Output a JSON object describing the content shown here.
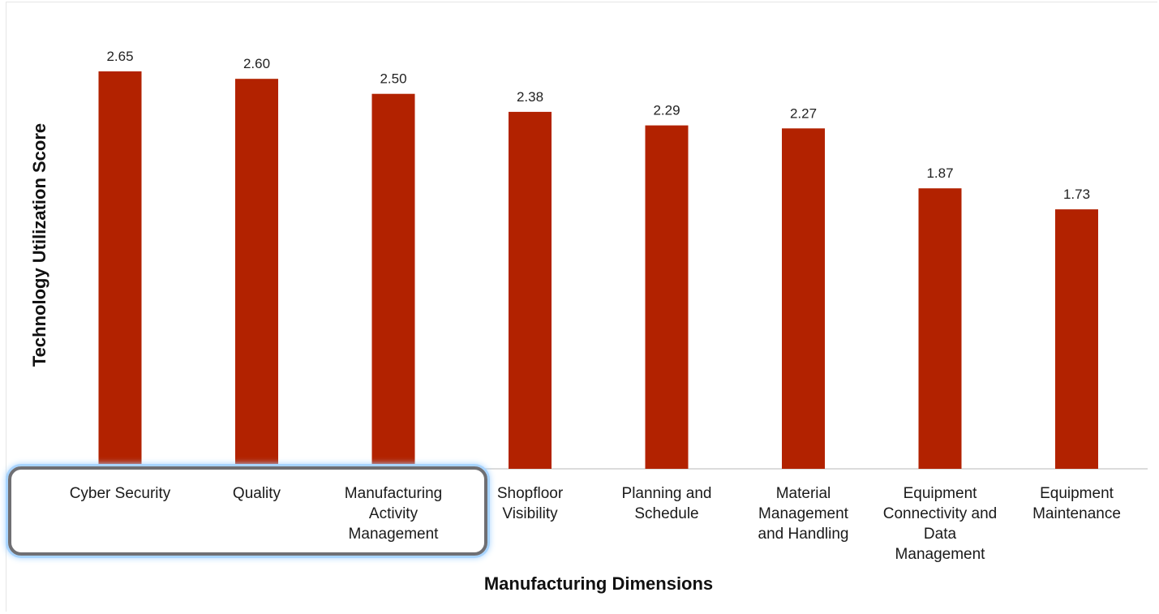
{
  "chart_data": {
    "type": "bar",
    "categories": [
      "Cyber Security",
      "Quality",
      "Manufacturing Activity Management",
      "Shopfloor Visibility",
      "Planning and Schedule",
      "Material Management and Handling",
      "Equipment Connectivity and Data Management",
      "Equipment Maintenance"
    ],
    "category_lines": [
      [
        "Cyber Security"
      ],
      [
        "Quality"
      ],
      [
        "Manufacturing",
        "Activity",
        "Management"
      ],
      [
        "Shopfloor",
        "Visibility"
      ],
      [
        "Planning and",
        "Schedule"
      ],
      [
        "Material",
        "Management",
        "and Handling"
      ],
      [
        "Equipment",
        "Connectivity and",
        "Data",
        "Management"
      ],
      [
        "Equipment",
        "Maintenance"
      ]
    ],
    "values": [
      2.65,
      2.6,
      2.5,
      2.38,
      2.29,
      2.27,
      1.87,
      1.73
    ],
    "value_labels": [
      "2.65",
      "2.60",
      "2.50",
      "2.38",
      "2.29",
      "2.27",
      "1.87",
      "1.73"
    ],
    "xlabel": "Manufacturing Dimensions",
    "ylabel": "Technology Utilization Score",
    "ylim": [
      0,
      2.65
    ],
    "grid": false,
    "bar_color": "#b22200",
    "highlight": {
      "categories": [
        "Cyber Security",
        "Quality",
        "Manufacturing Activity Management"
      ],
      "border_color": "#6f6f73",
      "glow_color": "#a8d4ff"
    }
  }
}
